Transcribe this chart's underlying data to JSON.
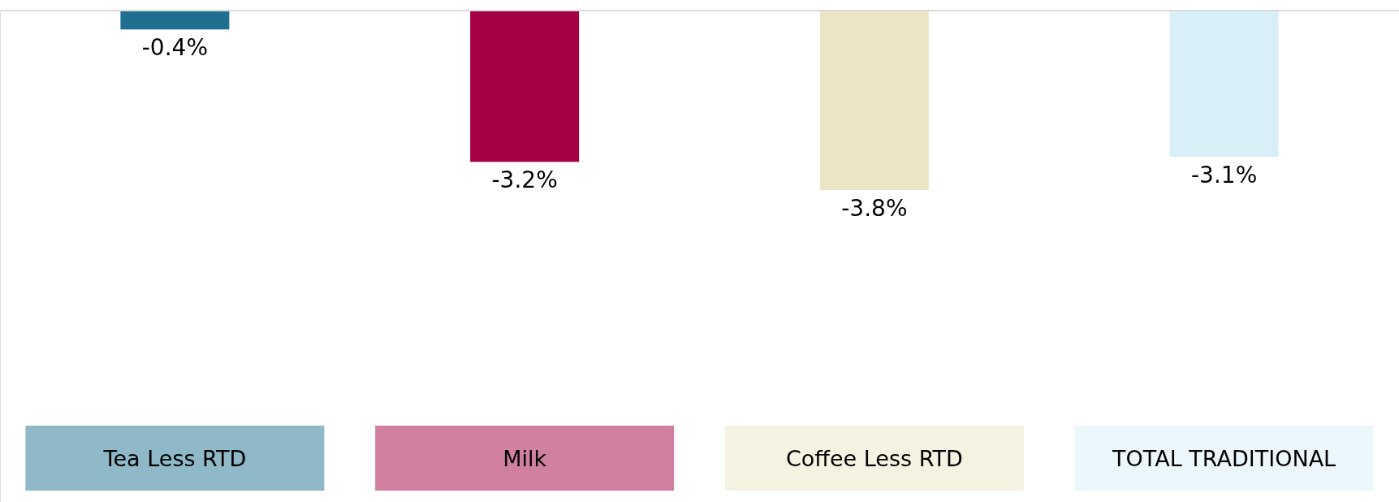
{
  "chart_data": {
    "type": "bar",
    "categories": [
      "Tea Less RTD",
      "Milk",
      "Coffee Less RTD",
      "TOTAL TRADITIONAL"
    ],
    "values": [
      -0.4,
      -3.2,
      -3.8,
      -3.1
    ],
    "colors": [
      "#1f7090",
      "#a50044",
      "#ebe5c6",
      "#d8eff8"
    ],
    "value_labels": [
      "-0.4%",
      "-3.2%",
      "-3.8%",
      "-3.1%"
    ],
    "ylim": [
      -10.4,
      0
    ],
    "grid": false
  }
}
